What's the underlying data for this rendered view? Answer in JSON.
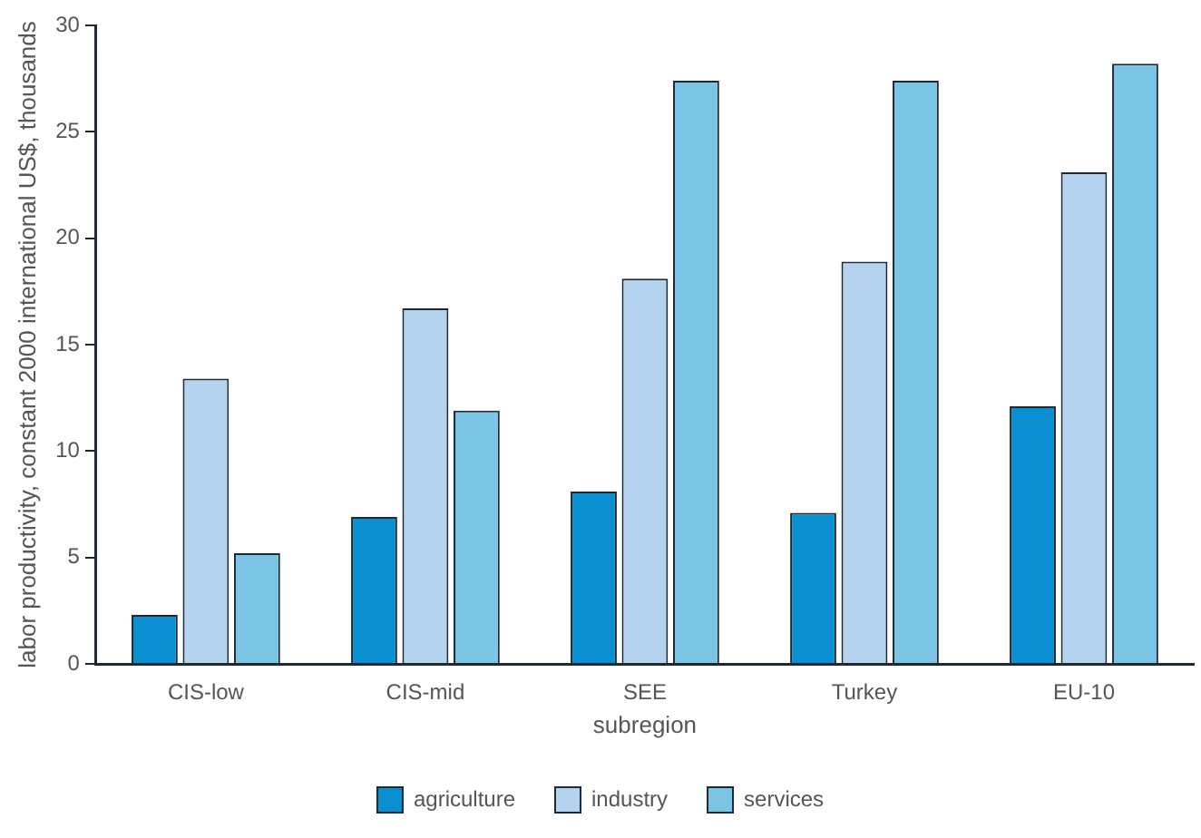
{
  "chart_data": {
    "type": "bar",
    "xlabel": "subregion",
    "ylabel": "labor productivity, constant 2000 international US$, thousands",
    "categories": [
      "CIS-low",
      "CIS-mid",
      "SEE",
      "Turkey",
      "EU-10"
    ],
    "series": [
      {
        "name": "agriculture",
        "color": "#0a8fd0",
        "values": [
          2.3,
          6.9,
          8.1,
          7.1,
          12.1
        ]
      },
      {
        "name": "industry",
        "color": "#b3d3ee",
        "values": [
          13.4,
          16.7,
          18.1,
          18.9,
          23.1
        ]
      },
      {
        "name": "services",
        "color": "#7cc4e4",
        "values": [
          5.2,
          11.9,
          27.4,
          27.4,
          28.2
        ]
      }
    ],
    "ylim": [
      0,
      30
    ],
    "yticks": [
      0,
      5,
      10,
      15,
      20,
      25,
      30
    ],
    "grid": false,
    "legend": "bottom"
  }
}
